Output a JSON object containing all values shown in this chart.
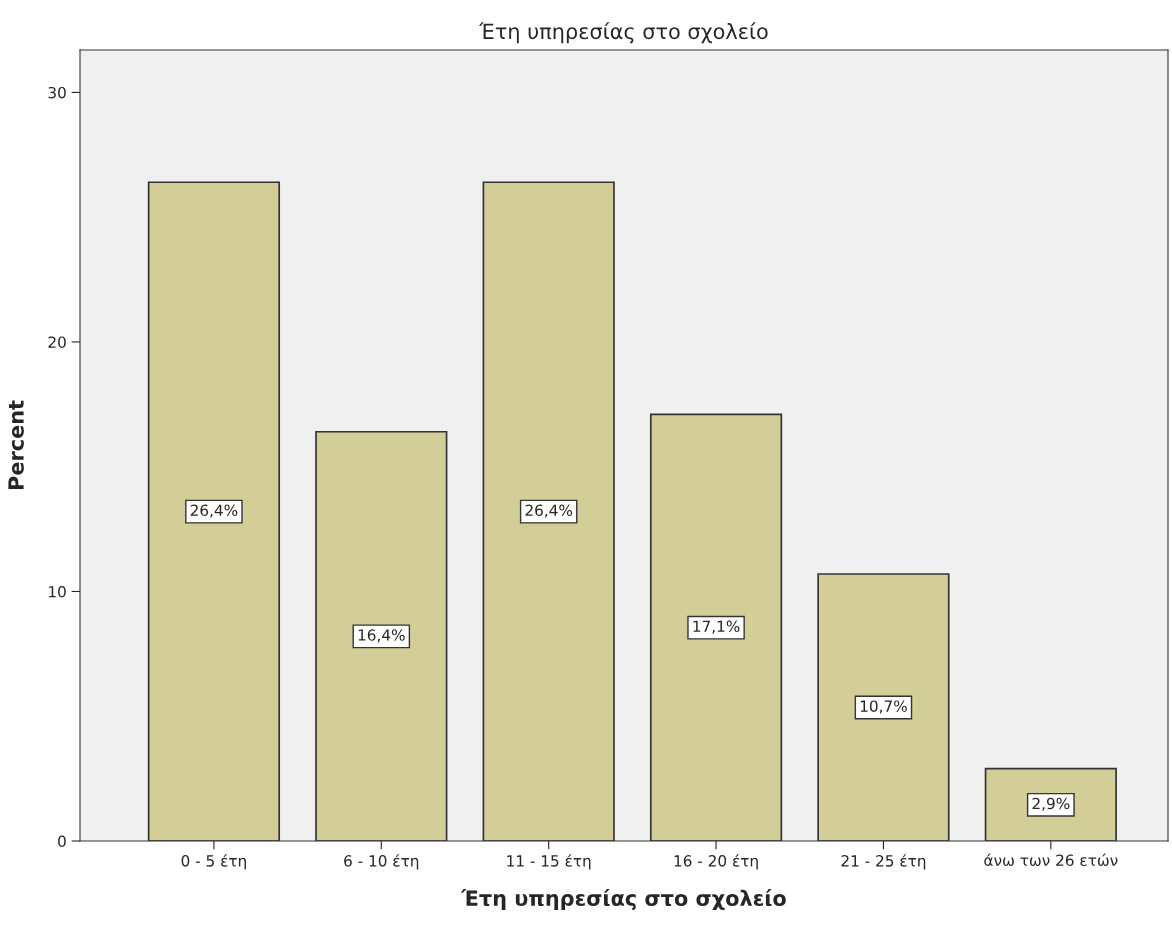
{
  "chart_data": {
    "type": "bar",
    "title": "Έτη υπηρεσίας στο σχολείο",
    "xlabel": "Έτη υπηρεσίας στο σχολείο",
    "ylabel": "Percent",
    "categories": [
      "0 - 5 έτη",
      "6 - 10 έτη",
      "11 - 15 έτη",
      "16 - 20 έτη",
      "21 - 25 έτη",
      "άνω των 26 ετών"
    ],
    "values": [
      26.4,
      16.4,
      26.4,
      17.1,
      10.7,
      2.9
    ],
    "value_labels": [
      "26,4%",
      "16,4%",
      "26,4%",
      "17,1%",
      "10,7%",
      "2,9%"
    ],
    "color": "#d3ce97",
    "ylim": [
      0,
      31.7
    ],
    "yticks": [
      0,
      10,
      20,
      30
    ],
    "grid": false,
    "legend": false
  }
}
